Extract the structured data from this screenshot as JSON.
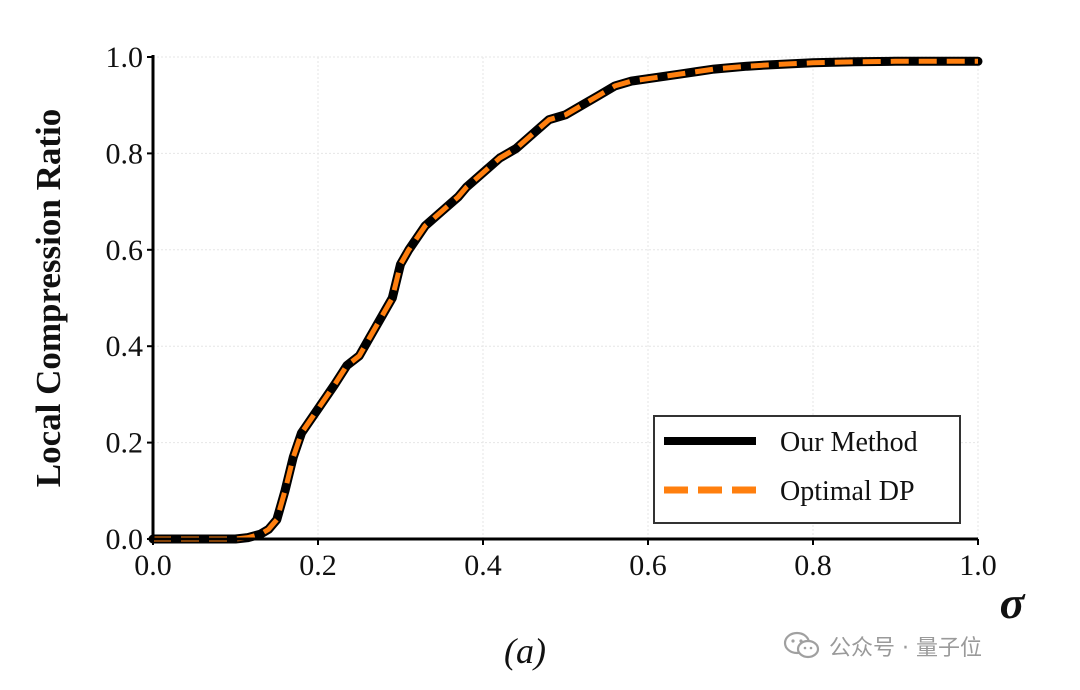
{
  "chart_data": {
    "type": "line",
    "title": "",
    "xlabel": "σ",
    "ylabel": "Local Compression Ratio",
    "caption": "(a)",
    "xlim": [
      0.0,
      1.0
    ],
    "ylim": [
      0.0,
      1.0
    ],
    "xticks": [
      "0.0",
      "0.2",
      "0.4",
      "0.6",
      "0.8",
      "1.0"
    ],
    "yticks": [
      "0.0",
      "0.2",
      "0.4",
      "0.6",
      "0.8",
      "1.0"
    ],
    "grid": true,
    "legend_position": "bottom-right",
    "series": [
      {
        "name": "Our Method",
        "color": "#000000",
        "style": "solid",
        "x": [
          0.0,
          0.05,
          0.1,
          0.115,
          0.13,
          0.14,
          0.15,
          0.16,
          0.17,
          0.18,
          0.2,
          0.22,
          0.235,
          0.25,
          0.26,
          0.27,
          0.28,
          0.29,
          0.3,
          0.31,
          0.33,
          0.35,
          0.37,
          0.38,
          0.4,
          0.42,
          0.44,
          0.46,
          0.48,
          0.5,
          0.52,
          0.54,
          0.56,
          0.58,
          0.6,
          0.62,
          0.64,
          0.66,
          0.68,
          0.7,
          0.72,
          0.75,
          0.8,
          0.85,
          0.9,
          0.95,
          1.0
        ],
        "y": [
          0.0,
          0.0,
          0.0,
          0.003,
          0.01,
          0.02,
          0.04,
          0.1,
          0.17,
          0.22,
          0.27,
          0.32,
          0.36,
          0.38,
          0.41,
          0.44,
          0.47,
          0.5,
          0.57,
          0.6,
          0.65,
          0.68,
          0.71,
          0.73,
          0.76,
          0.79,
          0.81,
          0.84,
          0.87,
          0.88,
          0.9,
          0.92,
          0.94,
          0.95,
          0.955,
          0.96,
          0.965,
          0.97,
          0.975,
          0.978,
          0.981,
          0.984,
          0.988,
          0.99,
          0.991,
          0.991,
          0.991
        ]
      },
      {
        "name": "Optimal DP",
        "color": "#ff7f0e",
        "style": "dashed",
        "x": [
          0.0,
          0.05,
          0.1,
          0.115,
          0.13,
          0.14,
          0.15,
          0.16,
          0.17,
          0.18,
          0.2,
          0.22,
          0.235,
          0.25,
          0.26,
          0.27,
          0.28,
          0.29,
          0.3,
          0.31,
          0.33,
          0.35,
          0.37,
          0.38,
          0.4,
          0.42,
          0.44,
          0.46,
          0.48,
          0.5,
          0.52,
          0.54,
          0.56,
          0.58,
          0.6,
          0.62,
          0.64,
          0.66,
          0.68,
          0.7,
          0.72,
          0.75,
          0.8,
          0.85,
          0.9,
          0.95,
          1.0
        ],
        "y": [
          0.0,
          0.0,
          0.0,
          0.003,
          0.01,
          0.02,
          0.04,
          0.1,
          0.17,
          0.22,
          0.27,
          0.32,
          0.36,
          0.38,
          0.41,
          0.44,
          0.47,
          0.5,
          0.57,
          0.6,
          0.65,
          0.68,
          0.71,
          0.73,
          0.76,
          0.79,
          0.81,
          0.84,
          0.87,
          0.88,
          0.9,
          0.92,
          0.94,
          0.95,
          0.955,
          0.96,
          0.965,
          0.97,
          0.975,
          0.978,
          0.981,
          0.984,
          0.988,
          0.99,
          0.991,
          0.991,
          0.991
        ]
      }
    ]
  },
  "watermark": {
    "text": "公众号 · 量子位",
    "icon": "wechat-icon",
    "color": "#9a9a9a"
  }
}
